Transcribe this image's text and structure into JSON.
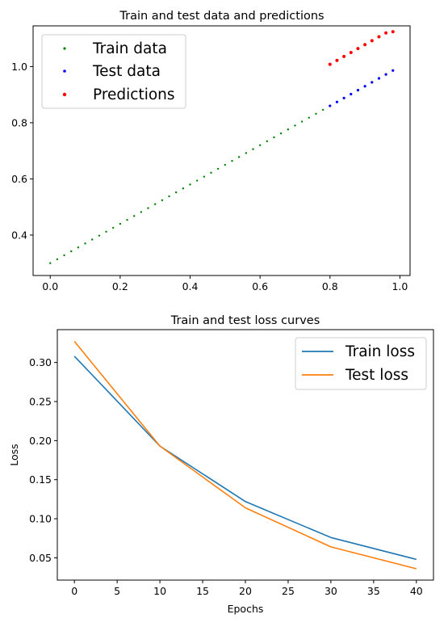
{
  "chart_data": [
    {
      "type": "scatter",
      "title": "Train and test data and predictions",
      "xlabel": "",
      "ylabel": "",
      "xlim": [
        -0.049,
        1.029
      ],
      "ylim": [
        0.256,
        1.145
      ],
      "xticks": [
        0.0,
        0.2,
        0.4,
        0.6,
        0.8,
        1.0
      ],
      "xtick_labels": [
        "0.0",
        "0.2",
        "0.4",
        "0.6",
        "0.8",
        "1.0"
      ],
      "yticks": [
        0.4,
        0.6,
        0.8,
        1.0
      ],
      "ytick_labels": [
        "0.4",
        "0.6",
        "0.8",
        "1.0"
      ],
      "grid": false,
      "legend_position": "top-left",
      "series": [
        {
          "name": "Train data",
          "color": "#008000",
          "x": [
            0.0,
            0.02,
            0.04,
            0.06,
            0.08,
            0.1,
            0.12,
            0.14,
            0.16,
            0.18,
            0.2,
            0.22,
            0.24,
            0.26,
            0.28,
            0.3,
            0.32,
            0.34,
            0.36,
            0.38,
            0.4,
            0.42,
            0.44,
            0.46,
            0.48,
            0.5,
            0.52,
            0.54,
            0.56,
            0.58,
            0.6,
            0.62,
            0.64,
            0.66,
            0.68,
            0.7,
            0.72,
            0.74,
            0.76,
            0.78
          ],
          "y": [
            0.3,
            0.314,
            0.328,
            0.342,
            0.356,
            0.37,
            0.384,
            0.398,
            0.412,
            0.426,
            0.44,
            0.454,
            0.468,
            0.482,
            0.496,
            0.51,
            0.524,
            0.538,
            0.552,
            0.566,
            0.58,
            0.594,
            0.608,
            0.622,
            0.636,
            0.65,
            0.664,
            0.678,
            0.692,
            0.706,
            0.72,
            0.734,
            0.748,
            0.762,
            0.776,
            0.79,
            0.804,
            0.818,
            0.832,
            0.846
          ]
        },
        {
          "name": "Test data",
          "color": "#0000ff",
          "x": [
            0.8,
            0.82,
            0.84,
            0.86,
            0.88,
            0.9,
            0.92,
            0.94,
            0.96,
            0.98
          ],
          "y": [
            0.86,
            0.874,
            0.888,
            0.902,
            0.916,
            0.93,
            0.944,
            0.958,
            0.972,
            0.986
          ]
        },
        {
          "name": "Predictions",
          "color": "#ff0000",
          "x": [
            0.8,
            0.82,
            0.84,
            0.86,
            0.88,
            0.9,
            0.92,
            0.94,
            0.96,
            0.98
          ],
          "y": [
            1.008,
            1.022,
            1.036,
            1.05,
            1.064,
            1.078,
            1.092,
            1.106,
            1.12,
            1.124
          ]
        }
      ]
    },
    {
      "type": "line",
      "title": "Train and test loss curves",
      "xlabel": "Epochs",
      "ylabel": "Loss",
      "xlim": [
        -2.0,
        42.0
      ],
      "ylim": [
        0.0215,
        0.342
      ],
      "xticks": [
        0,
        5,
        10,
        15,
        20,
        25,
        30,
        35,
        40
      ],
      "xtick_labels": [
        "0",
        "5",
        "10",
        "15",
        "20",
        "25",
        "30",
        "35",
        "40"
      ],
      "yticks": [
        0.05,
        0.1,
        0.15,
        0.2,
        0.25,
        0.3
      ],
      "ytick_labels": [
        "0.05",
        "0.10",
        "0.15",
        "0.20",
        "0.25",
        "0.30"
      ],
      "grid": false,
      "legend_position": "top-right",
      "x": [
        0,
        10,
        20,
        30,
        40
      ],
      "series": [
        {
          "name": "Train loss",
          "color": "#1f77b4",
          "values": [
            0.308,
            0.193,
            0.122,
            0.076,
            0.048
          ]
        },
        {
          "name": "Test loss",
          "color": "#ff7f0e",
          "values": [
            0.327,
            0.193,
            0.114,
            0.064,
            0.036
          ]
        }
      ]
    }
  ]
}
